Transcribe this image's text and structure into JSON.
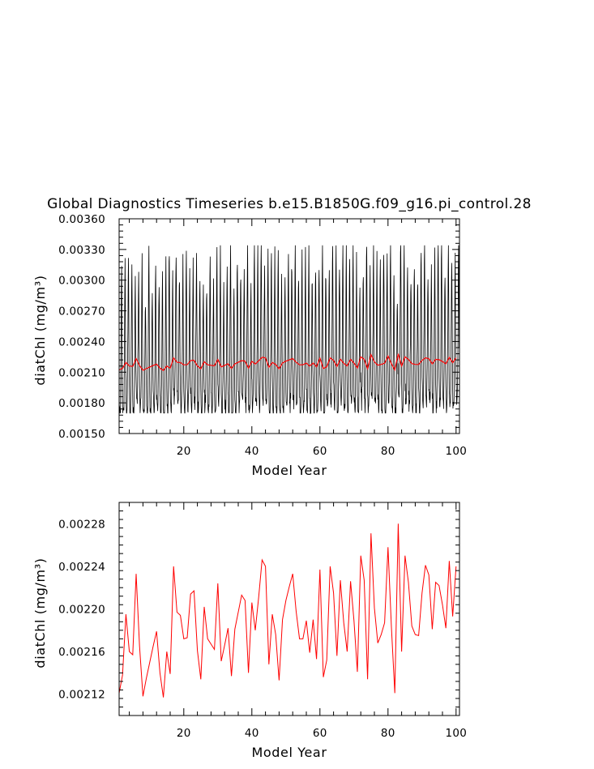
{
  "figure": {
    "title": "Global Diagnostics Timeseries b.e15.B1850G.f09_g16.pi_control.28"
  },
  "colors": {
    "monthly": "#000000",
    "annual": "#ff0000",
    "axes": "#000000"
  },
  "chart_data": [
    {
      "type": "line",
      "xlabel": "Model Year",
      "ylabel": "diatChl (mg/m³)",
      "xlim": [
        1,
        101
      ],
      "ylim": [
        0.0015,
        0.0036
      ],
      "xticks": [
        "20",
        "40",
        "60",
        "80",
        "100"
      ],
      "xtick_values": [
        20,
        40,
        60,
        80,
        100
      ],
      "yticks": [
        "0.00150",
        "0.00180",
        "0.00210",
        "0.00240",
        "0.00270",
        "0.00300",
        "0.00330",
        "0.00360"
      ],
      "ytick_values": [
        0.0015,
        0.0018,
        0.0021,
        0.0024,
        0.0027,
        0.003,
        0.0033,
        0.0036
      ],
      "grid": false,
      "series": [
        {
          "color": "#000000",
          "x_start": 1,
          "x_step": 0.0833333,
          "annual_cycle_min": [
            0.00195,
            0.00185,
            0.00178,
            0.00175,
            0.00178,
            0.0019,
            0.00215,
            0.00248,
            0.0029,
            0.00305,
            0.00265,
            0.0022
          ],
          "values_generated": "monthly cycle peaking each year around 0.0029-0.0033, troughs 0.00170-0.00185"
        },
        {
          "color": "#ff0000",
          "x_start": 1,
          "x_step": 1,
          "values": [
            0.002121,
            0.002138,
            0.002195,
            0.00216,
            0.002157,
            0.002233,
            0.002165,
            0.002118,
            0.002135,
            0.00215,
            0.002165,
            0.002179,
            0.00214,
            0.002117,
            0.00216,
            0.002139,
            0.00224,
            0.002197,
            0.002194,
            0.002172,
            0.002173,
            0.002214,
            0.002217,
            0.002161,
            0.002134,
            0.002202,
            0.002172,
            0.002167,
            0.002162,
            0.002224,
            0.002151,
            0.002166,
            0.002182,
            0.002137,
            0.002181,
            0.002197,
            0.002213,
            0.002208,
            0.00214,
            0.002206,
            0.00218,
            0.002211,
            0.002246,
            0.00224,
            0.002148,
            0.002195,
            0.002176,
            0.002133,
            0.00219,
            0.002208,
            0.002221,
            0.002233,
            0.002198,
            0.002172,
            0.002172,
            0.002189,
            0.002159,
            0.00219,
            0.002153,
            0.002237,
            0.002136,
            0.002152,
            0.00224,
            0.002215,
            0.002156,
            0.002227,
            0.002187,
            0.00216,
            0.002226,
            0.002189,
            0.002141,
            0.00225,
            0.002227,
            0.002134,
            0.002271,
            0.002201,
            0.002168,
            0.002176,
            0.002187,
            0.002258,
            0.002183,
            0.002121,
            0.00228,
            0.00216,
            0.00225,
            0.002225,
            0.002184,
            0.002176,
            0.002175,
            0.002215,
            0.002241,
            0.002232,
            0.002181,
            0.002225,
            0.002222,
            0.002204,
            0.002182,
            0.002245,
            0.002193,
            0.00224
          ]
        }
      ]
    },
    {
      "type": "line",
      "xlabel": "Model Year",
      "ylabel": "diatChl (mg/m³)",
      "xlim": [
        1,
        101
      ],
      "ylim": [
        0.0021,
        0.0023
      ],
      "xticks": [
        "20",
        "40",
        "60",
        "80",
        "100"
      ],
      "xtick_values": [
        20,
        40,
        60,
        80,
        100
      ],
      "yticks": [
        "0.00212",
        "0.00216",
        "0.00220",
        "0.00224",
        "0.00228"
      ],
      "ytick_values": [
        0.00212,
        0.00216,
        0.0022,
        0.00224,
        0.00228
      ],
      "grid": false,
      "series": [
        {
          "color": "#ff0000",
          "x_start": 1,
          "x_step": 1,
          "values_ref": "same as annual series of panel 1"
        }
      ]
    }
  ]
}
